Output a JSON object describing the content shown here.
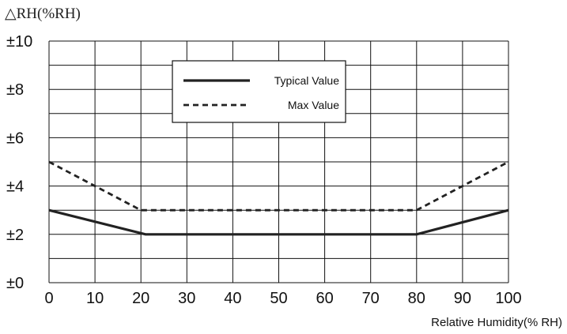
{
  "chart_data": {
    "type": "line",
    "ylabel": "△RH(%RH)",
    "xlabel": "Relative Humidity(% RH)",
    "xlim": [
      0,
      100
    ],
    "ylim": [
      0,
      10
    ],
    "x_ticks": [
      "0",
      "10",
      "20",
      "30",
      "40",
      "50",
      "60",
      "70",
      "80",
      "90",
      "100"
    ],
    "y_ticks": [
      "±0",
      "±2",
      "±4",
      "±6",
      "±8",
      "±10"
    ],
    "grid": true,
    "legend_position": "top-center",
    "series": [
      {
        "name": "Typical Value",
        "style": "solid",
        "color": "#222222",
        "points": [
          [
            0,
            3
          ],
          [
            21,
            2
          ],
          [
            80,
            2
          ],
          [
            100,
            3
          ]
        ]
      },
      {
        "name": "Max Value",
        "style": "dashed",
        "color": "#222222",
        "points": [
          [
            0,
            5
          ],
          [
            20,
            3
          ],
          [
            80,
            3
          ],
          [
            100,
            5
          ]
        ]
      }
    ]
  }
}
